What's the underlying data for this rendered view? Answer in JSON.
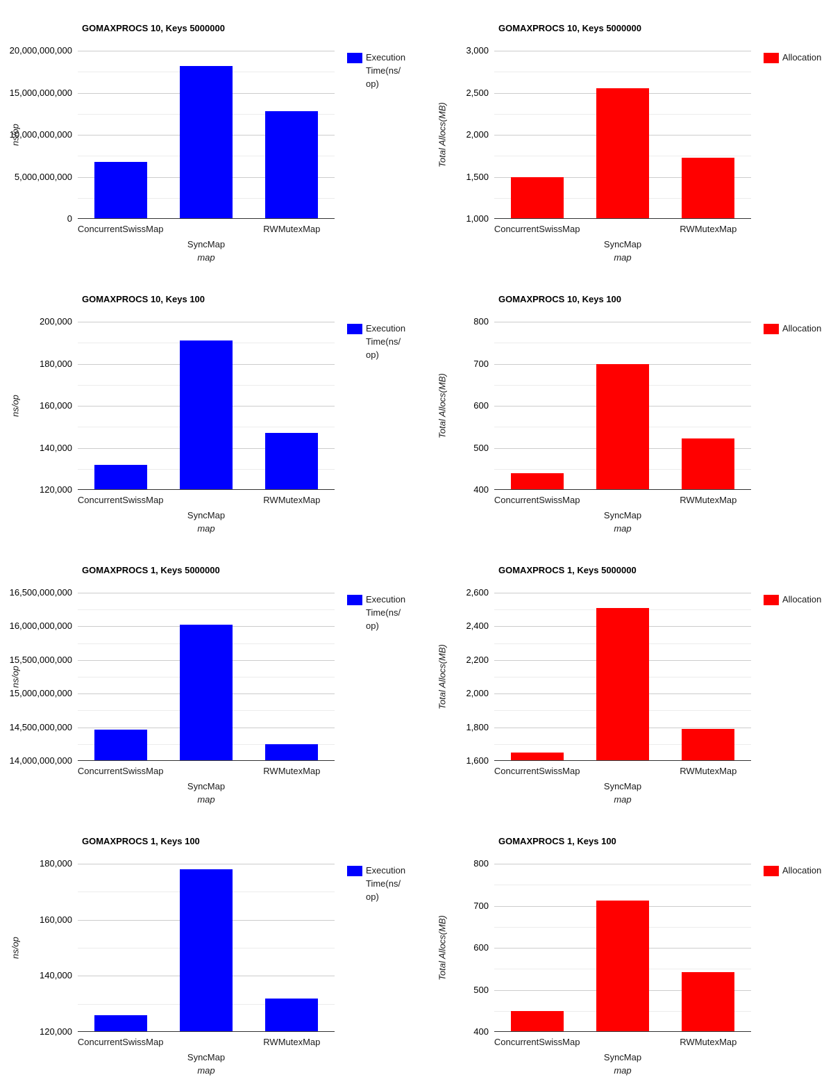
{
  "page": {
    "background": "#ffffff"
  },
  "colors": {
    "execution_bar": "#0000ff",
    "allocation_bar": "#ff0000",
    "grid_major": "#cccccc",
    "grid_minor": "#ececec",
    "axis_baseline": "#333333",
    "text": "#000000"
  },
  "chart_data": [
    {
      "type": "bar",
      "title": "GOMAXPROCS 10, Keys 5000000",
      "xlabel": "map",
      "ylabel": "ns/op",
      "categories": [
        "ConcurrentSwissMap",
        "SyncMap",
        "RWMutexMap"
      ],
      "values": [
        6800000000,
        18200000000,
        12800000000
      ],
      "ylim": [
        0,
        20000000000
      ],
      "bar_color": "#0000ff",
      "legend": {
        "label": "Execution Time(ns/op)",
        "lines": [
          "Execution",
          "Time(ns/",
          "op)"
        ],
        "position": "right"
      },
      "grid": true,
      "yticks": [
        {
          "value": 0,
          "label": "0"
        },
        {
          "value": 5000000000,
          "label": "5,000,000,000"
        },
        {
          "value": 10000000000,
          "label": "10,000,000,000"
        },
        {
          "value": 15000000000,
          "label": "15,000,000,000"
        },
        {
          "value": 20000000000,
          "label": "20,000,000,000"
        }
      ]
    },
    {
      "type": "bar",
      "title": "GOMAXPROCS 10, Keys 5000000",
      "xlabel": "map",
      "ylabel": "Total Allocs(MB)",
      "categories": [
        "ConcurrentSwissMap",
        "SyncMap",
        "RWMutexMap"
      ],
      "values": [
        1500,
        2550,
        1730
      ],
      "ylim": [
        1000,
        3000
      ],
      "bar_color": "#ff0000",
      "legend": {
        "label": "Allocation",
        "lines": [
          "Allocation"
        ],
        "position": "right"
      },
      "grid": true,
      "yticks": [
        {
          "value": 1000,
          "label": "1,000"
        },
        {
          "value": 1500,
          "label": "1,500"
        },
        {
          "value": 2000,
          "label": "2,000"
        },
        {
          "value": 2500,
          "label": "2,500"
        },
        {
          "value": 3000,
          "label": "3,000"
        }
      ]
    },
    {
      "type": "bar",
      "title": "GOMAXPROCS 10, Keys 100",
      "xlabel": "map",
      "ylabel": "ns/op",
      "categories": [
        "ConcurrentSwissMap",
        "SyncMap",
        "RWMutexMap"
      ],
      "values": [
        132000,
        191000,
        147000
      ],
      "ylim": [
        120000,
        200000
      ],
      "bar_color": "#0000ff",
      "legend": {
        "label": "Execution Time(ns/op)",
        "lines": [
          "Execution",
          "Time(ns/",
          "op)"
        ],
        "position": "right"
      },
      "grid": true,
      "yticks": [
        {
          "value": 120000,
          "label": "120,000"
        },
        {
          "value": 140000,
          "label": "140,000"
        },
        {
          "value": 160000,
          "label": "160,000"
        },
        {
          "value": 180000,
          "label": "180,000"
        },
        {
          "value": 200000,
          "label": "200,000"
        }
      ]
    },
    {
      "type": "bar",
      "title": "GOMAXPROCS 10, Keys 100",
      "xlabel": "map",
      "ylabel": "Total Allocs(MB)",
      "categories": [
        "ConcurrentSwissMap",
        "SyncMap",
        "RWMutexMap"
      ],
      "values": [
        440,
        700,
        522
      ],
      "ylim": [
        400,
        800
      ],
      "bar_color": "#ff0000",
      "legend": {
        "label": "Allocation",
        "lines": [
          "Allocation"
        ],
        "position": "right"
      },
      "grid": true,
      "yticks": [
        {
          "value": 400,
          "label": "400"
        },
        {
          "value": 500,
          "label": "500"
        },
        {
          "value": 600,
          "label": "600"
        },
        {
          "value": 700,
          "label": "700"
        },
        {
          "value": 800,
          "label": "800"
        }
      ]
    },
    {
      "type": "bar",
      "title": "GOMAXPROCS 1, Keys 5000000",
      "xlabel": "map",
      "ylabel": "ns/op",
      "categories": [
        "ConcurrentSwissMap",
        "SyncMap",
        "RWMutexMap"
      ],
      "values": [
        14470000000,
        16020000000,
        14250000000
      ],
      "ylim": [
        14000000000,
        16500000000
      ],
      "bar_color": "#0000ff",
      "legend": {
        "label": "Execution Time(ns/op)",
        "lines": [
          "Execution",
          "Time(ns/",
          "op)"
        ],
        "position": "right"
      },
      "grid": true,
      "yticks": [
        {
          "value": 14000000000,
          "label": "14,000,000,000"
        },
        {
          "value": 14500000000,
          "label": "14,500,000,000"
        },
        {
          "value": 15000000000,
          "label": "15,000,000,000"
        },
        {
          "value": 15500000000,
          "label": "15,500,000,000"
        },
        {
          "value": 16000000000,
          "label": "16,000,000,000"
        },
        {
          "value": 16500000000,
          "label": "16,500,000,000"
        }
      ]
    },
    {
      "type": "bar",
      "title": "GOMAXPROCS 1, Keys 5000000",
      "xlabel": "map",
      "ylabel": "Total Allocs(MB)",
      "categories": [
        "ConcurrentSwissMap",
        "SyncMap",
        "RWMutexMap"
      ],
      "values": [
        1650,
        2510,
        1790
      ],
      "ylim": [
        1600,
        2600
      ],
      "bar_color": "#ff0000",
      "legend": {
        "label": "Allocation",
        "lines": [
          "Allocation"
        ],
        "position": "right"
      },
      "grid": true,
      "yticks": [
        {
          "value": 1600,
          "label": "1,600"
        },
        {
          "value": 1800,
          "label": "1,800"
        },
        {
          "value": 2000,
          "label": "2,000"
        },
        {
          "value": 2200,
          "label": "2,200"
        },
        {
          "value": 2400,
          "label": "2,400"
        },
        {
          "value": 2600,
          "label": "2,600"
        }
      ]
    },
    {
      "type": "bar",
      "title": "GOMAXPROCS 1, Keys 100",
      "xlabel": "map",
      "ylabel": "ns/op",
      "categories": [
        "ConcurrentSwissMap",
        "SyncMap",
        "RWMutexMap"
      ],
      "values": [
        126000,
        178000,
        132000
      ],
      "ylim": [
        120000,
        180000
      ],
      "bar_color": "#0000ff",
      "legend": {
        "label": "Execution Time(ns/op)",
        "lines": [
          "Execution",
          "Time(ns/",
          "op)"
        ],
        "position": "right"
      },
      "grid": true,
      "yticks": [
        {
          "value": 120000,
          "label": "120,000"
        },
        {
          "value": 140000,
          "label": "140,000"
        },
        {
          "value": 160000,
          "label": "160,000"
        },
        {
          "value": 180000,
          "label": "180,000"
        }
      ]
    },
    {
      "type": "bar",
      "title": "GOMAXPROCS 1, Keys 100",
      "xlabel": "map",
      "ylabel": "Total Allocs(MB)",
      "categories": [
        "ConcurrentSwissMap",
        "SyncMap",
        "RWMutexMap"
      ],
      "values": [
        450,
        712,
        542
      ],
      "ylim": [
        400,
        800
      ],
      "bar_color": "#ff0000",
      "legend": {
        "label": "Allocation",
        "lines": [
          "Allocation"
        ],
        "position": "right"
      },
      "grid": true,
      "yticks": [
        {
          "value": 400,
          "label": "400"
        },
        {
          "value": 500,
          "label": "500"
        },
        {
          "value": 600,
          "label": "600"
        },
        {
          "value": 700,
          "label": "700"
        },
        {
          "value": 800,
          "label": "800"
        }
      ]
    }
  ]
}
